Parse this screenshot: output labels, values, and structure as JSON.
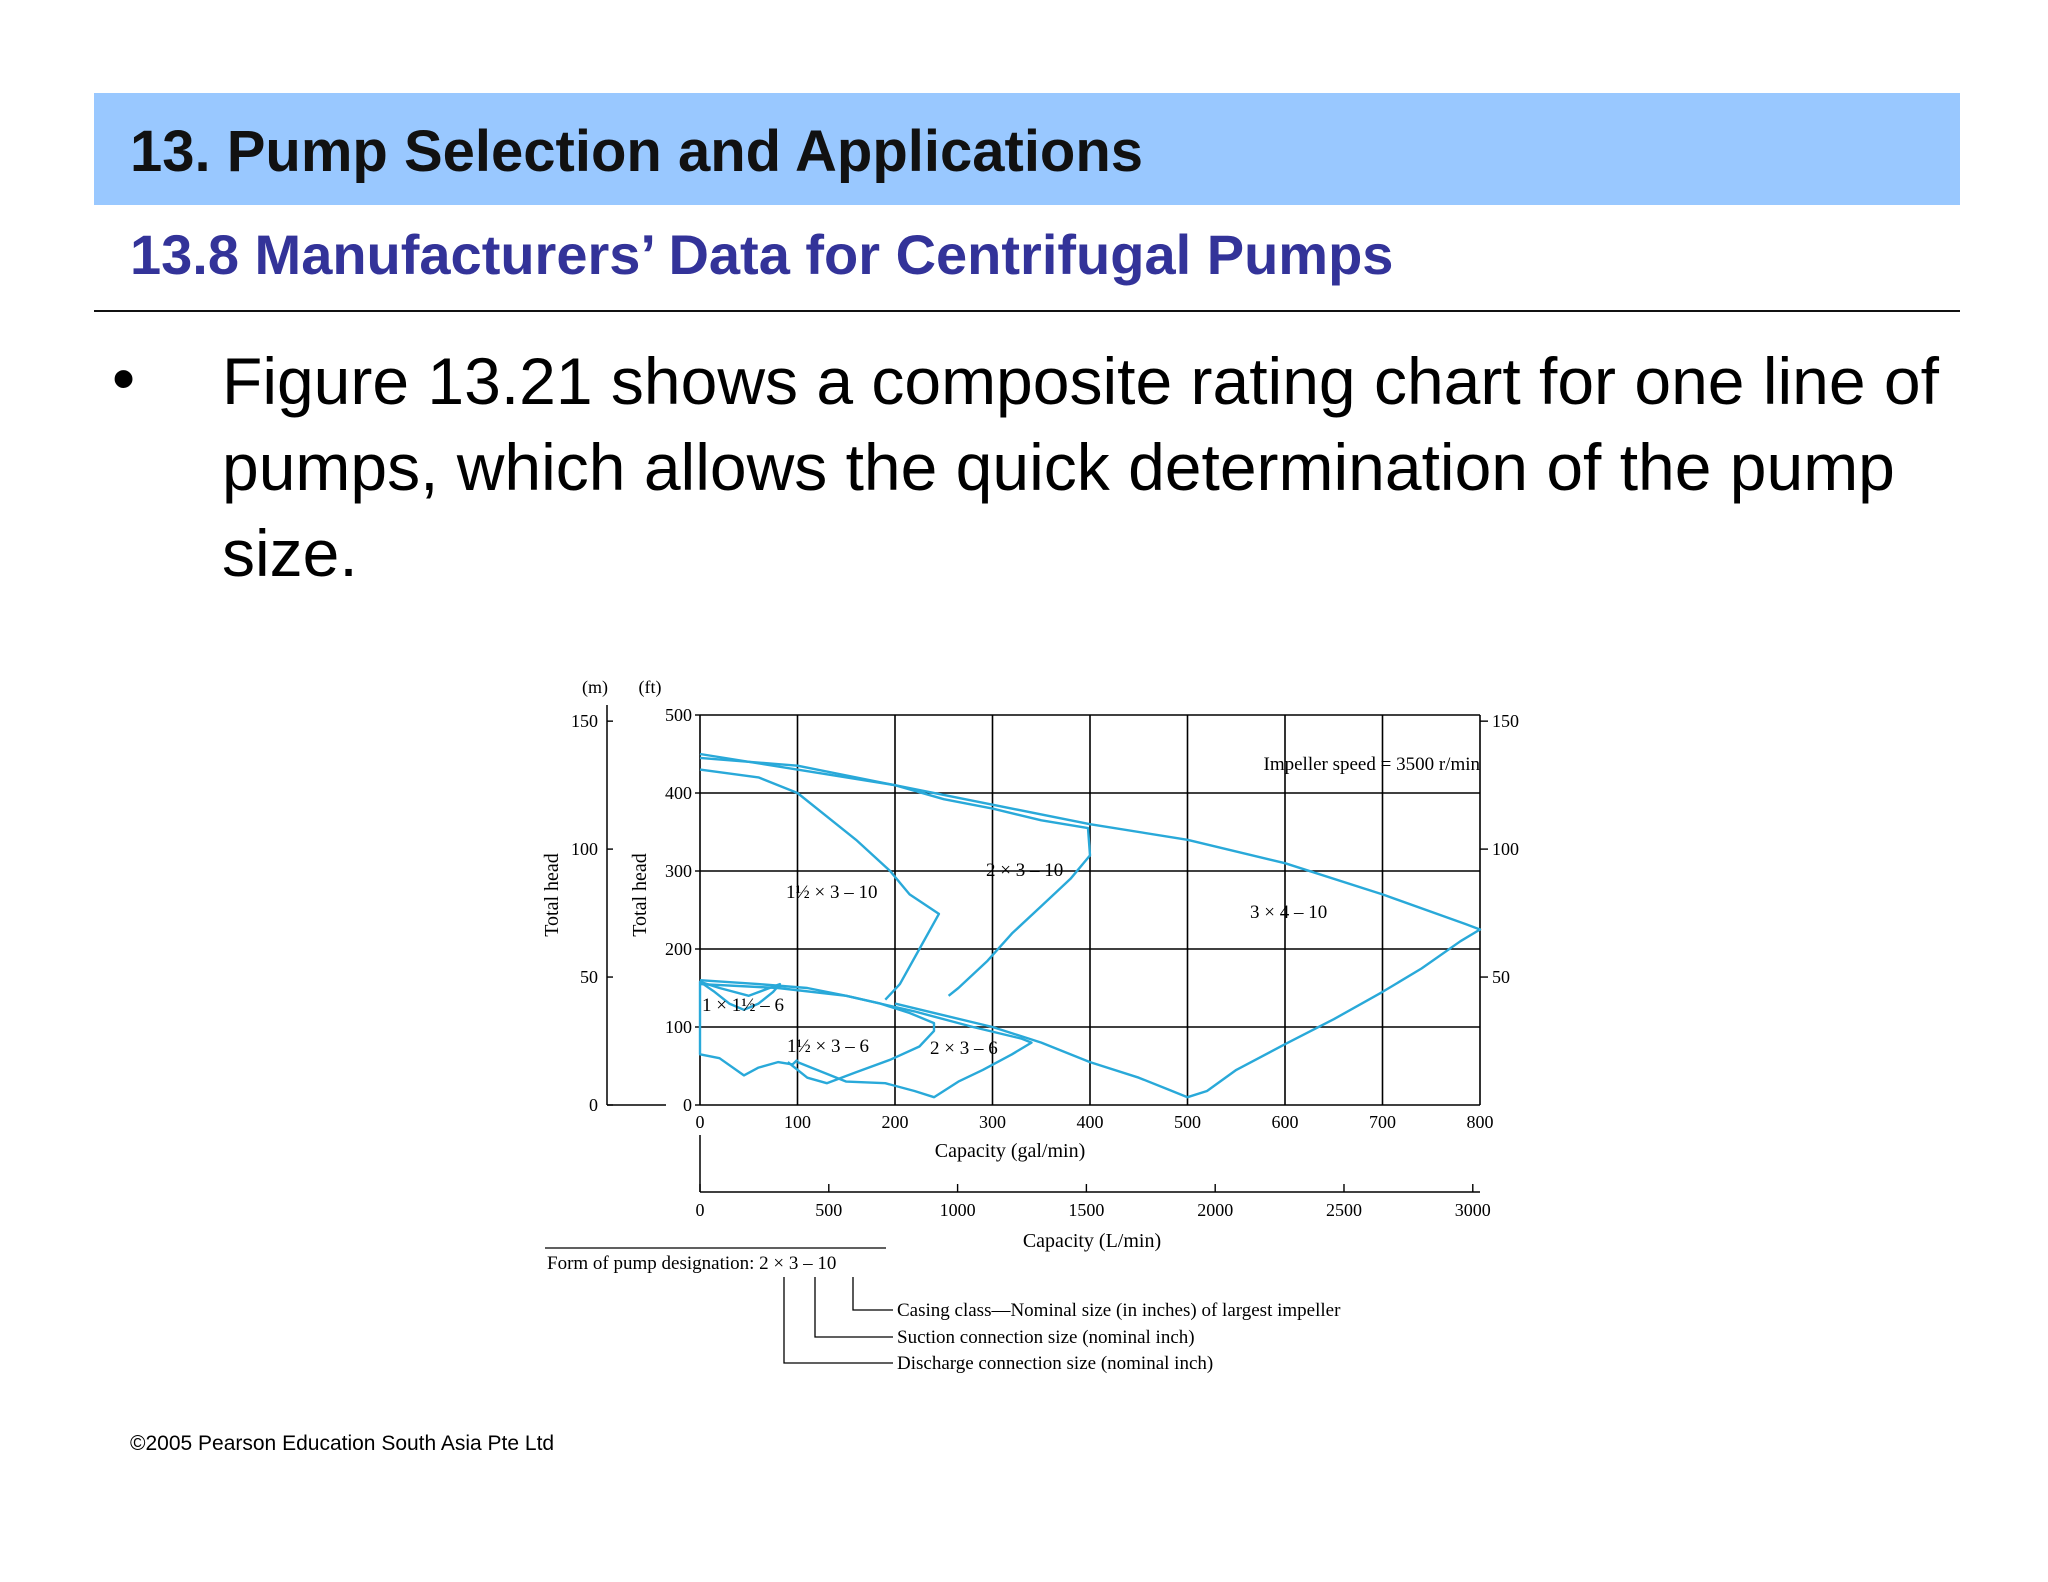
{
  "slide": {
    "title": "13. Pump Selection and Applications",
    "subtitle": "13.8 Manufacturers’ Data for Centrifugal Pumps",
    "bullet": "•",
    "body": "Figure 13.21 shows a composite rating chart for one line of pumps, which allows the quick determination of the pump size.",
    "footer": "©2005 Pearson Education South Asia Pte Ltd"
  },
  "figure": {
    "unit_m": "(m)",
    "unit_ft": "(ft)",
    "ylabel_m": "Total head",
    "ylabel_ft": "Total head",
    "impeller_note": "Impeller speed = 3500 r/min",
    "x_gpm_label": "Capacity (gal/min)",
    "x_lpm_label": "Capacity (L/min)",
    "x_lpm_ticks": [
      "0",
      "500",
      "1000",
      "1500",
      "2000",
      "2500",
      "3000"
    ],
    "pump_labels": {
      "p1": "1 × 1½ – 6",
      "p2": "1½ × 3 – 6",
      "p3": "2 × 3 – 6",
      "p4": "1½ × 3 – 10",
      "p5": "2 × 3 – 10",
      "p6": "3 × 4 – 10"
    },
    "designation": {
      "form": "Form of pump designation: 2 × 3 – 10",
      "casing": "Casing class—Nominal size (in inches) of largest impeller",
      "suction": "Suction connection size (nominal inch)",
      "discharge": "Discharge connection size (nominal inch)"
    }
  },
  "chart_data": {
    "type": "line",
    "title": "",
    "xlabel": "Capacity (gal/min)",
    "ylabel": "Total head",
    "xlim": [
      0,
      800
    ],
    "ylim": [
      0,
      500
    ],
    "x_ticks": [
      0,
      100,
      200,
      300,
      400,
      500,
      600,
      700,
      800
    ],
    "y_ticks_ft": [
      0,
      100,
      200,
      300,
      400,
      500
    ],
    "y_ticks_m": [
      0,
      50,
      100,
      150
    ],
    "grid": true,
    "line_color": "#29a9d9",
    "series": [
      {
        "name": "1 × 1½ – 6",
        "points": [
          [
            0,
            158
          ],
          [
            15,
            145
          ],
          [
            30,
            130
          ],
          [
            45,
            122
          ],
          [
            60,
            130
          ],
          [
            75,
            145
          ],
          [
            82,
            155
          ],
          [
            50,
            140
          ],
          [
            20,
            150
          ],
          [
            0,
            158
          ],
          [
            0,
            65
          ],
          [
            20,
            60
          ],
          [
            45,
            38
          ],
          [
            60,
            48
          ],
          [
            80,
            55
          ],
          [
            95,
            52
          ],
          [
            100,
            58
          ]
        ]
      },
      {
        "name": "1½ × 3 – 6",
        "points": [
          [
            0,
            160
          ],
          [
            60,
            155
          ],
          [
            110,
            150
          ],
          [
            150,
            140
          ],
          [
            185,
            130
          ],
          [
            215,
            118
          ],
          [
            240,
            105
          ],
          [
            240,
            95
          ],
          [
            225,
            75
          ],
          [
            195,
            58
          ],
          [
            160,
            42
          ],
          [
            130,
            28
          ],
          [
            110,
            35
          ],
          [
            90,
            55
          ]
        ]
      },
      {
        "name": "2 × 3 – 6",
        "points": [
          [
            0,
            155
          ],
          [
            80,
            150
          ],
          [
            150,
            140
          ],
          [
            220,
            120
          ],
          [
            280,
            100
          ],
          [
            330,
            85
          ],
          [
            340,
            80
          ],
          [
            320,
            65
          ],
          [
            290,
            45
          ],
          [
            265,
            30
          ],
          [
            240,
            10
          ],
          [
            220,
            18
          ],
          [
            190,
            28
          ],
          [
            150,
            30
          ],
          [
            100,
            55
          ]
        ]
      },
      {
        "name": "1½ × 3 – 10",
        "points": [
          [
            0,
            430
          ],
          [
            60,
            420
          ],
          [
            100,
            400
          ],
          [
            130,
            370
          ],
          [
            160,
            340
          ],
          [
            195,
            300
          ],
          [
            215,
            270
          ],
          [
            245,
            245
          ],
          [
            225,
            200
          ],
          [
            205,
            155
          ],
          [
            190,
            135
          ]
        ]
      },
      {
        "name": "2 × 3 – 10",
        "points": [
          [
            0,
            445
          ],
          [
            100,
            435
          ],
          [
            200,
            410
          ],
          [
            250,
            392
          ],
          [
            300,
            380
          ],
          [
            350,
            365
          ],
          [
            398,
            355
          ],
          [
            400,
            320
          ],
          [
            380,
            290
          ],
          [
            350,
            255
          ],
          [
            320,
            220
          ],
          [
            295,
            185
          ],
          [
            265,
            150
          ],
          [
            255,
            140
          ]
        ]
      },
      {
        "name": "3 × 4 – 10",
        "points": [
          [
            0,
            450
          ],
          [
            200,
            410
          ],
          [
            300,
            385
          ],
          [
            400,
            360
          ],
          [
            500,
            340
          ],
          [
            600,
            310
          ],
          [
            700,
            270
          ],
          [
            785,
            232
          ],
          [
            800,
            225
          ],
          [
            780,
            210
          ],
          [
            740,
            175
          ],
          [
            700,
            145
          ],
          [
            650,
            110
          ],
          [
            600,
            78
          ],
          [
            550,
            45
          ],
          [
            520,
            18
          ],
          [
            500,
            10
          ],
          [
            480,
            20
          ],
          [
            450,
            35
          ],
          [
            400,
            55
          ],
          [
            350,
            80
          ],
          [
            300,
            100
          ],
          [
            250,
            115
          ],
          [
            200,
            130
          ]
        ]
      }
    ]
  }
}
